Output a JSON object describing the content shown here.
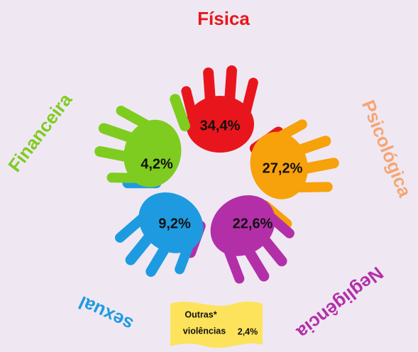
{
  "title": "Física",
  "hands": [
    {
      "label": "Física",
      "value": "34,4%"
    },
    {
      "label": "Psicológica",
      "value": "27,2%"
    },
    {
      "label": "Negligência",
      "value": "22,6%"
    },
    {
      "label": "sexual",
      "value": "9,2%"
    },
    {
      "label": "Financeira",
      "value": "4,2%"
    }
  ],
  "other": {
    "label_line1": "Outras*",
    "label_line2": "violências",
    "value": "2,4%"
  }
}
